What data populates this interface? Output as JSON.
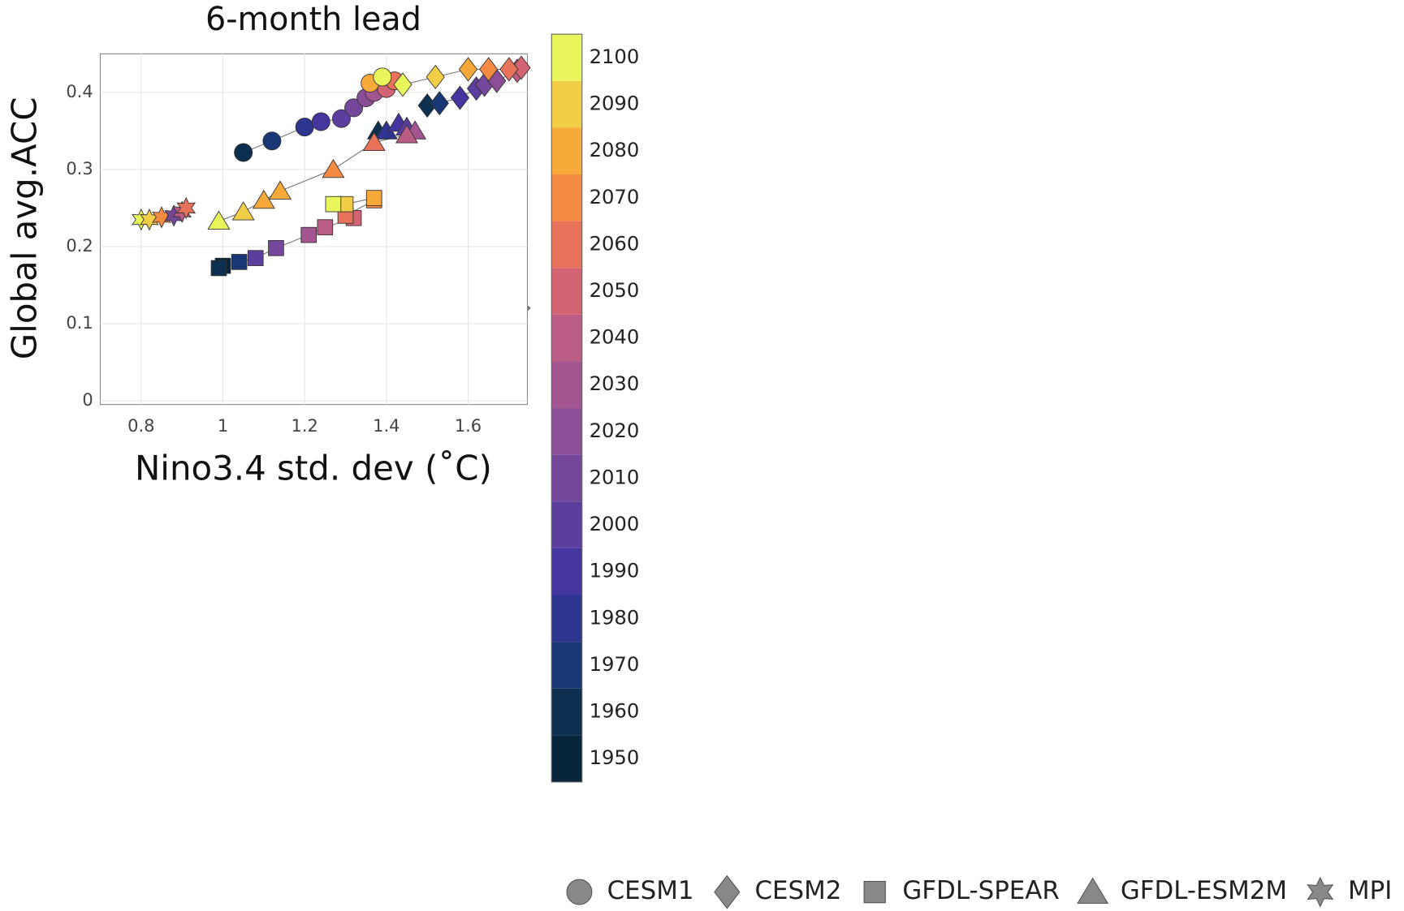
{
  "chart_data": {
    "type": "scatter",
    "title": "6-month lead",
    "xlabel": "Nino3.4 std. dev (˚C)",
    "ylabel": "Global avg.ACC",
    "xlim": [
      0.7,
      1.745
    ],
    "ylim": [
      -0.005,
      0.45
    ],
    "xticks": [
      0.8,
      1,
      1.2,
      1.4,
      1.6
    ],
    "yticks": [
      0,
      0.1,
      0.2,
      0.3,
      0.4
    ],
    "grid": true,
    "colorbar": {
      "range": [
        1945,
        2105
      ],
      "ticks": [
        1950,
        1960,
        1970,
        1980,
        1990,
        2000,
        2010,
        2020,
        2030,
        2040,
        2050,
        2060,
        2070,
        2080,
        2090,
        2100
      ],
      "colors": [
        "#08263a",
        "#0e3050",
        "#1a3775",
        "#2d3590",
        "#45369f",
        "#5c3e9e",
        "#74479b",
        "#8b4e96",
        "#a3558f",
        "#bb5c85",
        "#d36474",
        "#e9735a",
        "#f58a42",
        "#f7a93a",
        "#f2cd46",
        "#e8f55b"
      ]
    },
    "legend": "bottom",
    "series": [
      {
        "name": "CESM1",
        "marker": "circle",
        "x": [
          1.05,
          1.12,
          1.2,
          1.24,
          1.29,
          1.32,
          1.35,
          1.37,
          1.4,
          1.42,
          1.36,
          1.39
        ],
        "y": [
          0.322,
          0.337,
          0.355,
          0.362,
          0.366,
          0.38,
          0.393,
          0.4,
          0.405,
          0.415,
          0.412,
          0.42
        ],
        "year": [
          1960,
          1970,
          1980,
          1990,
          2000,
          2010,
          2020,
          2030,
          2050,
          2060,
          2080,
          2100
        ]
      },
      {
        "name": "CESM2",
        "marker": "diamond",
        "x": [
          1.5,
          1.53,
          1.58,
          1.62,
          1.64,
          1.67,
          1.72,
          1.73,
          1.7,
          1.65,
          1.6,
          1.52,
          1.44
        ],
        "y": [
          0.383,
          0.386,
          0.393,
          0.405,
          0.41,
          0.415,
          0.428,
          0.432,
          0.43,
          0.43,
          0.43,
          0.42,
          0.41
        ],
        "year": [
          1960,
          1970,
          1990,
          2000,
          2010,
          2020,
          2040,
          2050,
          2060,
          2070,
          2080,
          2090,
          2100
        ]
      },
      {
        "name": "GFDL-SPEAR",
        "marker": "square",
        "x": [
          1.0,
          0.99,
          1.04,
          1.08,
          1.13,
          1.21,
          1.25,
          1.32,
          1.3,
          1.37,
          1.37,
          1.3,
          1.27
        ],
        "y": [
          0.175,
          0.172,
          0.18,
          0.185,
          0.198,
          0.215,
          0.225,
          0.237,
          0.24,
          0.26,
          0.263,
          0.255,
          0.255
        ],
        "year": [
          1950,
          1960,
          1970,
          2000,
          2010,
          2030,
          2040,
          2050,
          2060,
          2070,
          2080,
          2090,
          2100
        ]
      },
      {
        "name": "GFDL-ESM2M",
        "marker": "triangle",
        "x": [
          1.38,
          1.4,
          1.43,
          1.45,
          1.47,
          1.45,
          1.37,
          1.27,
          1.14,
          1.1,
          1.05,
          0.99
        ],
        "y": [
          0.35,
          0.35,
          0.36,
          0.355,
          0.35,
          0.345,
          0.335,
          0.3,
          0.272,
          0.26,
          0.245,
          0.233
        ],
        "year": [
          1960,
          1980,
          1990,
          2000,
          2030,
          2040,
          2060,
          2070,
          2080,
          2080,
          2090,
          2100
        ]
      },
      {
        "name": "MPI",
        "marker": "star",
        "x": [
          0.8,
          0.82,
          0.85,
          0.88,
          0.9,
          0.91
        ],
        "y": [
          0.235,
          0.235,
          0.238,
          0.24,
          0.245,
          0.25
        ],
        "year": [
          2100,
          2090,
          2070,
          2010,
          2040,
          2060
        ]
      }
    ]
  }
}
